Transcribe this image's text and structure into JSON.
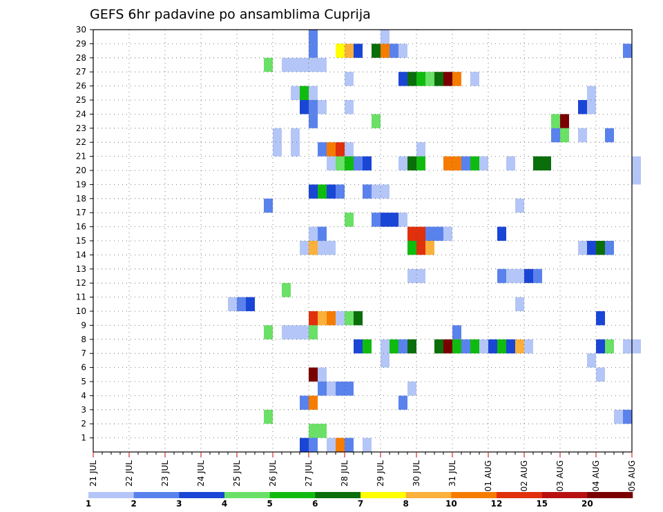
{
  "chart_data": {
    "type": "heatmap",
    "title": "GEFS 6hr padavine po ansamblima Cuprija",
    "xlabel": "",
    "ylabel": "",
    "x_ticks": [
      "21 JUL",
      "22 JUL",
      "23 JUL",
      "24 JUL",
      "25 JUL",
      "26 JUL",
      "27 JUL",
      "28 JUL",
      "29 JUL",
      "30 JUL",
      "31 JUL",
      "01 AUG",
      "02 AUG",
      "03 AUG",
      "04 AUG",
      "05 AUG"
    ],
    "y_ticks": [
      "1",
      "2",
      "3",
      "4",
      "5",
      "6",
      "7",
      "8",
      "9",
      "10",
      "11",
      "12",
      "13",
      "14",
      "15",
      "16",
      "17",
      "18",
      "19",
      "20",
      "21",
      "22",
      "23",
      "24",
      "25",
      "26",
      "27",
      "28",
      "29",
      "30"
    ],
    "xlim": [
      0,
      15
    ],
    "ylim": [
      0,
      30
    ],
    "x_step_days": 0.25,
    "grid": true,
    "colorbar": {
      "labels": [
        "1",
        "2",
        "3",
        "4",
        "5",
        "6",
        "7",
        "8",
        "10",
        "12",
        "15",
        "20"
      ],
      "colors": [
        "#b4c6f7",
        "#5a82ec",
        "#1a46d6",
        "#6ae066",
        "#10bb10",
        "#0a6e0a",
        "#ffff00",
        "#fbb03b",
        "#f57c00",
        "#e0300c",
        "#b81010",
        "#7a0000"
      ]
    },
    "cells": [
      {
        "x": 6.0,
        "y": 30,
        "level": 2
      },
      {
        "x": 8.0,
        "y": 30,
        "level": 1
      },
      {
        "x": 6.0,
        "y": 29,
        "level": 2
      },
      {
        "x": 6.75,
        "y": 29,
        "level": 7
      },
      {
        "x": 7.0,
        "y": 29,
        "level": 8
      },
      {
        "x": 7.25,
        "y": 29,
        "level": 3
      },
      {
        "x": 7.75,
        "y": 29,
        "level": 6
      },
      {
        "x": 8.0,
        "y": 29,
        "level": 9
      },
      {
        "x": 8.25,
        "y": 29,
        "level": 2
      },
      {
        "x": 8.5,
        "y": 29,
        "level": 1
      },
      {
        "x": 14.75,
        "y": 29,
        "level": 2
      },
      {
        "x": 4.75,
        "y": 28,
        "level": 4
      },
      {
        "x": 5.25,
        "y": 28,
        "level": 1
      },
      {
        "x": 5.5,
        "y": 28,
        "level": 1
      },
      {
        "x": 5.75,
        "y": 28,
        "level": 1
      },
      {
        "x": 6.0,
        "y": 28,
        "level": 1
      },
      {
        "x": 6.25,
        "y": 28,
        "level": 1
      },
      {
        "x": 7.0,
        "y": 27,
        "level": 1
      },
      {
        "x": 8.5,
        "y": 27,
        "level": 3
      },
      {
        "x": 8.75,
        "y": 27,
        "level": 6
      },
      {
        "x": 9.0,
        "y": 27,
        "level": 5
      },
      {
        "x": 9.25,
        "y": 27,
        "level": 4
      },
      {
        "x": 9.5,
        "y": 27,
        "level": 6
      },
      {
        "x": 9.75,
        "y": 27,
        "level": 12
      },
      {
        "x": 10.0,
        "y": 27,
        "level": 9
      },
      {
        "x": 10.5,
        "y": 27,
        "level": 1
      },
      {
        "x": 5.5,
        "y": 26,
        "level": 1
      },
      {
        "x": 5.75,
        "y": 26,
        "level": 5
      },
      {
        "x": 6.0,
        "y": 26,
        "level": 1
      },
      {
        "x": 13.75,
        "y": 26,
        "level": 1
      },
      {
        "x": 5.75,
        "y": 25,
        "level": 3
      },
      {
        "x": 6.0,
        "y": 25,
        "level": 2
      },
      {
        "x": 6.25,
        "y": 25,
        "level": 1
      },
      {
        "x": 7.0,
        "y": 25,
        "level": 1
      },
      {
        "x": 13.5,
        "y": 25,
        "level": 3
      },
      {
        "x": 13.75,
        "y": 25,
        "level": 1
      },
      {
        "x": 6.0,
        "y": 24,
        "level": 2
      },
      {
        "x": 7.75,
        "y": 24,
        "level": 4
      },
      {
        "x": 12.75,
        "y": 24,
        "level": 4
      },
      {
        "x": 13.0,
        "y": 24,
        "level": 12
      },
      {
        "x": 5.0,
        "y": 23,
        "level": 1
      },
      {
        "x": 5.5,
        "y": 23,
        "level": 1
      },
      {
        "x": 12.75,
        "y": 23,
        "level": 2
      },
      {
        "x": 13.0,
        "y": 23,
        "level": 4
      },
      {
        "x": 13.5,
        "y": 23,
        "level": 1
      },
      {
        "x": 14.25,
        "y": 23,
        "level": 2
      },
      {
        "x": 5.0,
        "y": 22,
        "level": 1
      },
      {
        "x": 5.5,
        "y": 22,
        "level": 1
      },
      {
        "x": 6.25,
        "y": 22,
        "level": 2
      },
      {
        "x": 6.5,
        "y": 22,
        "level": 9
      },
      {
        "x": 6.75,
        "y": 22,
        "level": 10
      },
      {
        "x": 7.0,
        "y": 22,
        "level": 1
      },
      {
        "x": 9.0,
        "y": 22,
        "level": 1
      },
      {
        "x": 6.5,
        "y": 21,
        "level": 1
      },
      {
        "x": 6.75,
        "y": 21,
        "level": 4
      },
      {
        "x": 7.0,
        "y": 21,
        "level": 5
      },
      {
        "x": 7.25,
        "y": 21,
        "level": 2
      },
      {
        "x": 7.5,
        "y": 21,
        "level": 3
      },
      {
        "x": 8.5,
        "y": 21,
        "level": 1
      },
      {
        "x": 8.75,
        "y": 21,
        "level": 6
      },
      {
        "x": 9.0,
        "y": 21,
        "level": 5
      },
      {
        "x": 9.75,
        "y": 21,
        "level": 9
      },
      {
        "x": 10.0,
        "y": 21,
        "level": 9
      },
      {
        "x": 10.25,
        "y": 21,
        "level": 2
      },
      {
        "x": 10.5,
        "y": 21,
        "level": 5
      },
      {
        "x": 10.75,
        "y": 21,
        "level": 1
      },
      {
        "x": 11.5,
        "y": 21,
        "level": 1
      },
      {
        "x": 12.25,
        "y": 21,
        "level": 6
      },
      {
        "x": 12.5,
        "y": 21,
        "level": 6
      },
      {
        "x": 15.0,
        "y": 21,
        "level": 1
      },
      {
        "x": 15.0,
        "y": 20,
        "level": 1
      },
      {
        "x": 6.0,
        "y": 19,
        "level": 3
      },
      {
        "x": 6.25,
        "y": 19,
        "level": 5
      },
      {
        "x": 6.5,
        "y": 19,
        "level": 3
      },
      {
        "x": 6.75,
        "y": 19,
        "level": 2
      },
      {
        "x": 7.5,
        "y": 19,
        "level": 2
      },
      {
        "x": 7.75,
        "y": 19,
        "level": 1
      },
      {
        "x": 8.0,
        "y": 19,
        "level": 1
      },
      {
        "x": 4.75,
        "y": 18,
        "level": 2
      },
      {
        "x": 11.75,
        "y": 18,
        "level": 1
      },
      {
        "x": 7.0,
        "y": 17,
        "level": 4
      },
      {
        "x": 7.75,
        "y": 17,
        "level": 2
      },
      {
        "x": 8.0,
        "y": 17,
        "level": 3
      },
      {
        "x": 8.25,
        "y": 17,
        "level": 3
      },
      {
        "x": 8.5,
        "y": 17,
        "level": 1
      },
      {
        "x": 6.0,
        "y": 16,
        "level": 1
      },
      {
        "x": 6.25,
        "y": 16,
        "level": 2
      },
      {
        "x": 8.75,
        "y": 16,
        "level": 10
      },
      {
        "x": 9.0,
        "y": 16,
        "level": 10
      },
      {
        "x": 9.25,
        "y": 16,
        "level": 2
      },
      {
        "x": 9.5,
        "y": 16,
        "level": 2
      },
      {
        "x": 9.75,
        "y": 16,
        "level": 1
      },
      {
        "x": 11.25,
        "y": 16,
        "level": 3
      },
      {
        "x": 5.75,
        "y": 15,
        "level": 1
      },
      {
        "x": 6.0,
        "y": 15,
        "level": 8
      },
      {
        "x": 6.25,
        "y": 15,
        "level": 1
      },
      {
        "x": 6.5,
        "y": 15,
        "level": 1
      },
      {
        "x": 8.75,
        "y": 15,
        "level": 5
      },
      {
        "x": 9.0,
        "y": 15,
        "level": 10
      },
      {
        "x": 9.25,
        "y": 15,
        "level": 8
      },
      {
        "x": 13.5,
        "y": 15,
        "level": 1
      },
      {
        "x": 13.75,
        "y": 15,
        "level": 3
      },
      {
        "x": 14.0,
        "y": 15,
        "level": 6
      },
      {
        "x": 14.25,
        "y": 15,
        "level": 2
      },
      {
        "x": 8.75,
        "y": 13,
        "level": 1
      },
      {
        "x": 9.0,
        "y": 13,
        "level": 1
      },
      {
        "x": 11.25,
        "y": 13,
        "level": 2
      },
      {
        "x": 11.5,
        "y": 13,
        "level": 1
      },
      {
        "x": 11.75,
        "y": 13,
        "level": 1
      },
      {
        "x": 12.0,
        "y": 13,
        "level": 3
      },
      {
        "x": 12.25,
        "y": 13,
        "level": 2
      },
      {
        "x": 5.25,
        "y": 12,
        "level": 4
      },
      {
        "x": 3.75,
        "y": 11,
        "level": 1
      },
      {
        "x": 4.0,
        "y": 11,
        "level": 2
      },
      {
        "x": 4.25,
        "y": 11,
        "level": 3
      },
      {
        "x": 11.75,
        "y": 11,
        "level": 1
      },
      {
        "x": 6.0,
        "y": 10,
        "level": 10
      },
      {
        "x": 6.25,
        "y": 10,
        "level": 8
      },
      {
        "x": 6.5,
        "y": 10,
        "level": 9
      },
      {
        "x": 6.75,
        "y": 10,
        "level": 1
      },
      {
        "x": 7.0,
        "y": 10,
        "level": 4
      },
      {
        "x": 7.25,
        "y": 10,
        "level": 6
      },
      {
        "x": 14.0,
        "y": 10,
        "level": 3
      },
      {
        "x": 4.75,
        "y": 9,
        "level": 4
      },
      {
        "x": 5.25,
        "y": 9,
        "level": 1
      },
      {
        "x": 5.5,
        "y": 9,
        "level": 1
      },
      {
        "x": 5.75,
        "y": 9,
        "level": 1
      },
      {
        "x": 6.0,
        "y": 9,
        "level": 4
      },
      {
        "x": 10.0,
        "y": 9,
        "level": 2
      },
      {
        "x": 7.25,
        "y": 8,
        "level": 3
      },
      {
        "x": 7.5,
        "y": 8,
        "level": 5
      },
      {
        "x": 8.0,
        "y": 8,
        "level": 1
      },
      {
        "x": 8.25,
        "y": 8,
        "level": 5
      },
      {
        "x": 8.5,
        "y": 8,
        "level": 2
      },
      {
        "x": 8.75,
        "y": 8,
        "level": 6
      },
      {
        "x": 9.5,
        "y": 8,
        "level": 6
      },
      {
        "x": 9.75,
        "y": 8,
        "level": 12
      },
      {
        "x": 10.0,
        "y": 8,
        "level": 5
      },
      {
        "x": 10.25,
        "y": 8,
        "level": 2
      },
      {
        "x": 10.5,
        "y": 8,
        "level": 5
      },
      {
        "x": 10.75,
        "y": 8,
        "level": 1
      },
      {
        "x": 11.0,
        "y": 8,
        "level": 3
      },
      {
        "x": 11.25,
        "y": 8,
        "level": 5
      },
      {
        "x": 11.5,
        "y": 8,
        "level": 3
      },
      {
        "x": 11.75,
        "y": 8,
        "level": 8
      },
      {
        "x": 12.0,
        "y": 8,
        "level": 1
      },
      {
        "x": 14.0,
        "y": 8,
        "level": 3
      },
      {
        "x": 14.25,
        "y": 8,
        "level": 4
      },
      {
        "x": 14.75,
        "y": 8,
        "level": 1
      },
      {
        "x": 15.0,
        "y": 8,
        "level": 1
      },
      {
        "x": 8.0,
        "y": 7,
        "level": 1
      },
      {
        "x": 13.75,
        "y": 7,
        "level": 1
      },
      {
        "x": 6.0,
        "y": 6,
        "level": 12
      },
      {
        "x": 6.25,
        "y": 6,
        "level": 1
      },
      {
        "x": 14.0,
        "y": 6,
        "level": 1
      },
      {
        "x": 6.25,
        "y": 5,
        "level": 2
      },
      {
        "x": 6.5,
        "y": 5,
        "level": 1
      },
      {
        "x": 6.75,
        "y": 5,
        "level": 2
      },
      {
        "x": 7.0,
        "y": 5,
        "level": 2
      },
      {
        "x": 8.75,
        "y": 5,
        "level": 1
      },
      {
        "x": 5.75,
        "y": 4,
        "level": 2
      },
      {
        "x": 6.0,
        "y": 4,
        "level": 9
      },
      {
        "x": 8.5,
        "y": 4,
        "level": 2
      },
      {
        "x": 4.75,
        "y": 3,
        "level": 4
      },
      {
        "x": 14.5,
        "y": 3,
        "level": 1
      },
      {
        "x": 14.75,
        "y": 3,
        "level": 2
      },
      {
        "x": 6.0,
        "y": 2,
        "level": 4
      },
      {
        "x": 6.25,
        "y": 2,
        "level": 4
      },
      {
        "x": 5.75,
        "y": 1,
        "level": 3
      },
      {
        "x": 6.0,
        "y": 1,
        "level": 2
      },
      {
        "x": 6.5,
        "y": 1,
        "level": 1
      },
      {
        "x": 6.75,
        "y": 1,
        "level": 9
      },
      {
        "x": 7.0,
        "y": 1,
        "level": 2
      },
      {
        "x": 7.5,
        "y": 1,
        "level": 1
      }
    ]
  }
}
